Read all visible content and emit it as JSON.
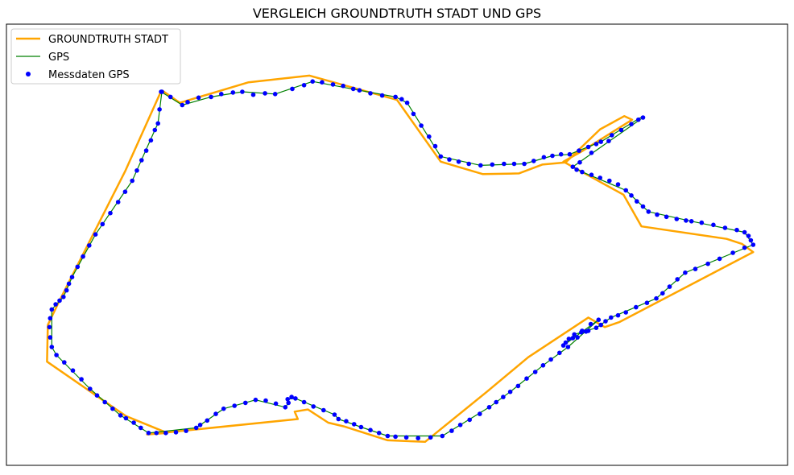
{
  "chart_data": {
    "type": "line",
    "title": "VERGLEICH GROUNDTRUTH STADT UND GPS",
    "xlabel": "",
    "ylabel": "",
    "grid": false,
    "axis_ticks": false,
    "legend_position": "top-left",
    "xlim": [
      0,
      1000
    ],
    "ylim": [
      0,
      600
    ],
    "series": [
      {
        "name": "GROUNDTRUTH STADT",
        "kind": "line",
        "color": "#FFA500",
        "points": [
          [
            199,
            510
          ],
          [
            222,
            493
          ],
          [
            310,
            521
          ],
          [
            388,
            530
          ],
          [
            500,
            497
          ],
          [
            556,
            413
          ],
          [
            610,
            396
          ],
          [
            656,
            397
          ],
          [
            686,
            409
          ],
          [
            716,
            412
          ],
          [
            760,
            457
          ],
          [
            791,
            475
          ],
          [
            801,
            470
          ],
          [
            738,
            428
          ],
          [
            713,
            413
          ],
          [
            790,
            368
          ],
          [
            813,
            325
          ],
          [
            922,
            308
          ],
          [
            942,
            301
          ],
          [
            956,
            290
          ],
          [
            785,
            195
          ],
          [
            766,
            188
          ],
          [
            745,
            201
          ],
          [
            668,
            147
          ],
          [
            615,
            100
          ],
          [
            536,
            32
          ],
          [
            488,
            34
          ],
          [
            432,
            53
          ],
          [
            412,
            58
          ],
          [
            386,
            76
          ],
          [
            369,
            73
          ],
          [
            373,
            63
          ],
          [
            180,
            42
          ],
          [
            206,
            44
          ],
          [
            153,
            67
          ],
          [
            52,
            141
          ],
          [
            53,
            191
          ],
          [
            67,
            222
          ],
          [
            152,
            400
          ],
          [
            198,
            509
          ]
        ]
      },
      {
        "name": "GPS",
        "kind": "line",
        "color": "#008000",
        "points": [
          [
            198,
            508
          ],
          [
            225,
            490
          ],
          [
            262,
            501
          ],
          [
            302,
            508
          ],
          [
            344,
            505
          ],
          [
            392,
            522
          ],
          [
            452,
            510
          ],
          [
            498,
            501
          ],
          [
            513,
            493
          ],
          [
            556,
            420
          ],
          [
            607,
            408
          ],
          [
            663,
            410
          ],
          [
            699,
            421
          ],
          [
            721,
            423
          ],
          [
            761,
            440
          ],
          [
            812,
            473
          ],
          [
            815,
            473
          ],
          [
            725,
            406
          ],
          [
            737,
            399
          ],
          [
            793,
            374
          ],
          [
            822,
            345
          ],
          [
            877,
            332
          ],
          [
            945,
            317
          ],
          [
            956,
            300
          ],
          [
            869,
            262
          ],
          [
            832,
            227
          ],
          [
            774,
            201
          ],
          [
            755,
            187
          ],
          [
            727,
            178
          ],
          [
            713,
            163
          ],
          [
            758,
            198
          ],
          [
            719,
            161
          ],
          [
            687,
            136
          ],
          [
            645,
            100
          ],
          [
            618,
            79
          ],
          [
            558,
            40
          ],
          [
            488,
            40
          ],
          [
            454,
            52
          ],
          [
            425,
            63
          ],
          [
            420,
            69
          ],
          [
            370,
            91
          ],
          [
            360,
            90
          ],
          [
            361,
            85
          ],
          [
            357,
            79
          ],
          [
            319,
            89
          ],
          [
            278,
            77
          ],
          [
            243,
            51
          ],
          [
            182,
            44
          ],
          [
            146,
            68
          ],
          [
            107,
            104
          ],
          [
            64,
            150
          ],
          [
            58,
            161
          ],
          [
            58,
            212
          ],
          [
            73,
            229
          ],
          [
            84,
            256
          ],
          [
            114,
            314
          ],
          [
            161,
            387
          ],
          [
            190,
            456
          ],
          [
            194,
            465
          ],
          [
            199,
            508
          ]
        ]
      },
      {
        "name": "Messdaten GPS",
        "kind": "scatter",
        "color": "#0000FF",
        "points": [
          [
            198,
            508
          ],
          [
            210,
            501
          ],
          [
            225,
            490
          ],
          [
            232,
            494
          ],
          [
            246,
            500
          ],
          [
            262,
            501
          ],
          [
            275,
            505
          ],
          [
            290,
            507
          ],
          [
            302,
            508
          ],
          [
            316,
            504
          ],
          [
            331,
            506
          ],
          [
            344,
            505
          ],
          [
            366,
            512
          ],
          [
            381,
            517
          ],
          [
            392,
            522
          ],
          [
            404,
            521
          ],
          [
            418,
            518
          ],
          [
            431,
            516
          ],
          [
            444,
            512
          ],
          [
            452,
            510
          ],
          [
            466,
            506
          ],
          [
            481,
            503
          ],
          [
            498,
            501
          ],
          [
            506,
            498
          ],
          [
            513,
            493
          ],
          [
            521,
            478
          ],
          [
            531,
            462
          ],
          [
            541,
            447
          ],
          [
            549,
            434
          ],
          [
            556,
            420
          ],
          [
            567,
            416
          ],
          [
            579,
            413
          ],
          [
            592,
            410
          ],
          [
            607,
            408
          ],
          [
            622,
            409
          ],
          [
            637,
            410
          ],
          [
            650,
            410
          ],
          [
            663,
            410
          ],
          [
            675,
            414
          ],
          [
            688,
            419
          ],
          [
            699,
            421
          ],
          [
            710,
            423
          ],
          [
            721,
            423
          ],
          [
            733,
            428
          ],
          [
            745,
            433
          ],
          [
            755,
            437
          ],
          [
            761,
            440
          ],
          [
            775,
            449
          ],
          [
            787,
            456
          ],
          [
            800,
            464
          ],
          [
            809,
            470
          ],
          [
            815,
            473
          ],
          [
            771,
            441
          ],
          [
            749,
            425
          ],
          [
            734,
            412
          ],
          [
            725,
            406
          ],
          [
            730,
            402
          ],
          [
            737,
            399
          ],
          [
            749,
            395
          ],
          [
            760,
            391
          ],
          [
            772,
            387
          ],
          [
            783,
            382
          ],
          [
            793,
            374
          ],
          [
            800,
            367
          ],
          [
            807,
            359
          ],
          [
            815,
            352
          ],
          [
            822,
            345
          ],
          [
            833,
            341
          ],
          [
            845,
            338
          ],
          [
            858,
            335
          ],
          [
            870,
            333
          ],
          [
            877,
            332
          ],
          [
            890,
            330
          ],
          [
            905,
            327
          ],
          [
            920,
            323
          ],
          [
            935,
            320
          ],
          [
            945,
            317
          ],
          [
            950,
            312
          ],
          [
            953,
            306
          ],
          [
            956,
            300
          ],
          [
            945,
            296
          ],
          [
            930,
            289
          ],
          [
            913,
            281
          ],
          [
            898,
            274
          ],
          [
            882,
            267
          ],
          [
            869,
            262
          ],
          [
            859,
            253
          ],
          [
            849,
            243
          ],
          [
            840,
            234
          ],
          [
            832,
            227
          ],
          [
            820,
            221
          ],
          [
            806,
            215
          ],
          [
            793,
            208
          ],
          [
            783,
            204
          ],
          [
            774,
            201
          ],
          [
            767,
            196
          ],
          [
            761,
            191
          ],
          [
            755,
            187
          ],
          [
            745,
            183
          ],
          [
            736,
            181
          ],
          [
            727,
            178
          ],
          [
            720,
            172
          ],
          [
            716,
            167
          ],
          [
            713,
            163
          ],
          [
            725,
            173
          ],
          [
            737,
            183
          ],
          [
            748,
            192
          ],
          [
            758,
            198
          ],
          [
            742,
            182
          ],
          [
            731,
            174
          ],
          [
            719,
            161
          ],
          [
            708,
            153
          ],
          [
            697,
            144
          ],
          [
            687,
            136
          ],
          [
            677,
            127
          ],
          [
            666,
            118
          ],
          [
            655,
            108
          ],
          [
            645,
            100
          ],
          [
            636,
            93
          ],
          [
            627,
            86
          ],
          [
            618,
            79
          ],
          [
            606,
            70
          ],
          [
            593,
            62
          ],
          [
            581,
            55
          ],
          [
            570,
            47
          ],
          [
            558,
            40
          ],
          [
            543,
            38
          ],
          [
            527,
            37
          ],
          [
            512,
            38
          ],
          [
            498,
            39
          ],
          [
            488,
            40
          ],
          [
            477,
            44
          ],
          [
            466,
            48
          ],
          [
            454,
            52
          ],
          [
            445,
            56
          ],
          [
            435,
            60
          ],
          [
            425,
            63
          ],
          [
            420,
            69
          ],
          [
            406,
            75
          ],
          [
            393,
            80
          ],
          [
            381,
            86
          ],
          [
            370,
            91
          ],
          [
            365,
            93
          ],
          [
            360,
            90
          ],
          [
            361,
            85
          ],
          [
            357,
            79
          ],
          [
            345,
            84
          ],
          [
            332,
            88
          ],
          [
            319,
            89
          ],
          [
            306,
            85
          ],
          [
            292,
            81
          ],
          [
            278,
            77
          ],
          [
            268,
            70
          ],
          [
            257,
            61
          ],
          [
            248,
            55
          ],
          [
            243,
            51
          ],
          [
            230,
            47
          ],
          [
            217,
            45
          ],
          [
            204,
            44
          ],
          [
            192,
            44
          ],
          [
            182,
            44
          ],
          [
            172,
            51
          ],
          [
            163,
            58
          ],
          [
            153,
            64
          ],
          [
            146,
            68
          ],
          [
            136,
            77
          ],
          [
            126,
            86
          ],
          [
            116,
            95
          ],
          [
            107,
            104
          ],
          [
            96,
            117
          ],
          [
            85,
            129
          ],
          [
            74,
            140
          ],
          [
            64,
            150
          ],
          [
            58,
            161
          ],
          [
            56,
            174
          ],
          [
            55,
            188
          ],
          [
            56,
            200
          ],
          [
            58,
            212
          ],
          [
            63,
            219
          ],
          [
            68,
            224
          ],
          [
            73,
            229
          ],
          [
            77,
            238
          ],
          [
            80,
            247
          ],
          [
            84,
            256
          ],
          [
            91,
            270
          ],
          [
            98,
            284
          ],
          [
            106,
            299
          ],
          [
            114,
            314
          ],
          [
            123,
            328
          ],
          [
            133,
            343
          ],
          [
            143,
            358
          ],
          [
            152,
            372
          ],
          [
            161,
            387
          ],
          [
            167,
            401
          ],
          [
            173,
            415
          ],
          [
            179,
            428
          ],
          [
            185,
            442
          ],
          [
            190,
            456
          ],
          [
            194,
            465
          ],
          [
            196,
            484
          ],
          [
            199,
            508
          ]
        ]
      }
    ]
  }
}
